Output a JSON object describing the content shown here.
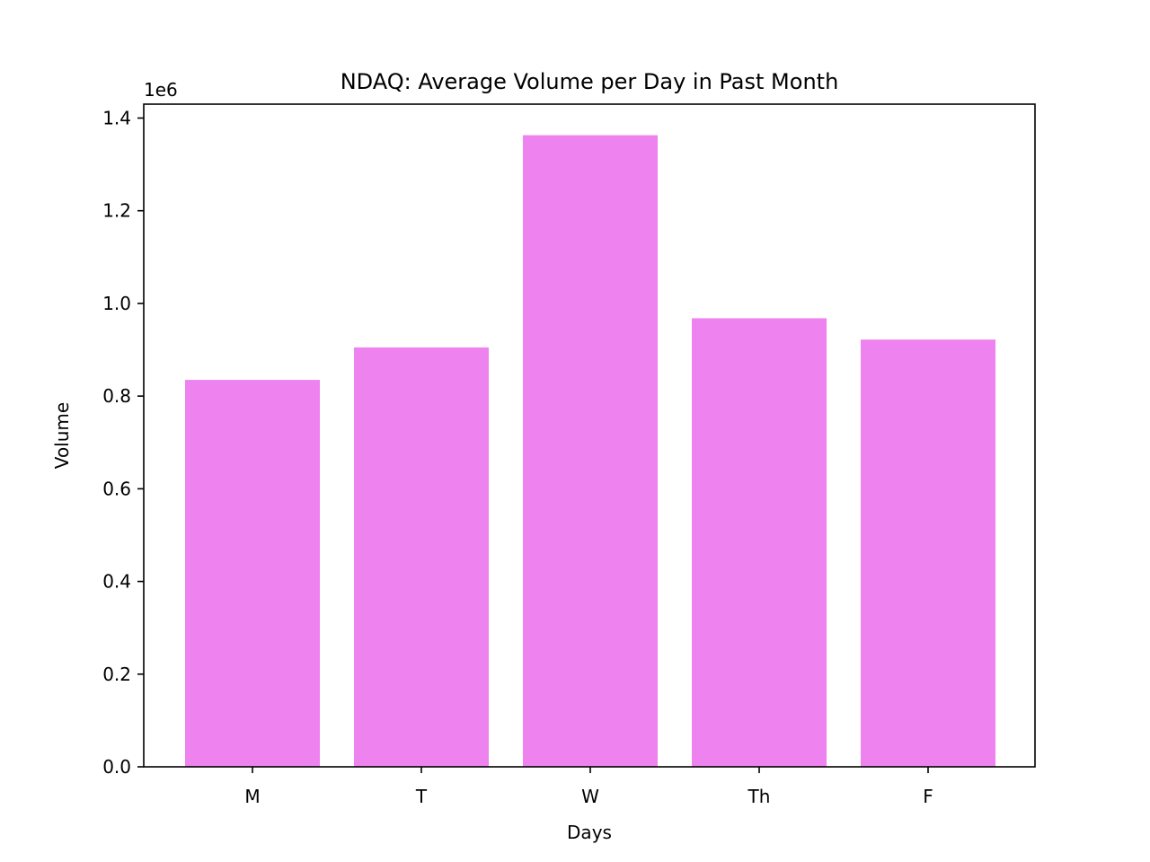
{
  "chart_data": {
    "type": "bar",
    "title": "NDAQ: Average Volume per Day in Past Month",
    "xlabel": "Days",
    "ylabel": "Volume",
    "offset_label": "1e6",
    "categories": [
      "M",
      "T",
      "W",
      "Th",
      "F"
    ],
    "values": [
      835000,
      905000,
      1363000,
      968000,
      922000
    ],
    "ylim": [
      0,
      1430000
    ],
    "yticks": [
      0,
      200000,
      400000,
      600000,
      800000,
      1000000,
      1200000,
      1400000
    ],
    "ytick_labels": [
      "0.0",
      "0.2",
      "0.4",
      "0.6",
      "0.8",
      "1.0",
      "1.2",
      "1.4"
    ],
    "bar_color": "#ee82ee",
    "grid": false,
    "legend": "none"
  }
}
